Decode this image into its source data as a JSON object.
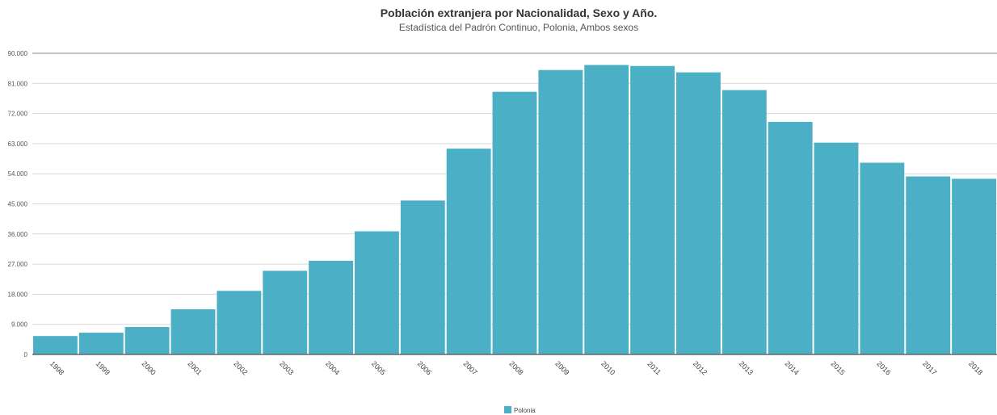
{
  "chart_data": {
    "type": "bar",
    "title": "Población extranjera por Nacionalidad, Sexo y Año.",
    "subtitle": "Estadística del Padrón Continuo, Polonia, Ambos sexos",
    "categories": [
      "1998",
      "1999",
      "2000",
      "2001",
      "2002",
      "2003",
      "2004",
      "2005",
      "2006",
      "2007",
      "2008",
      "2009",
      "2010",
      "2011",
      "2012",
      "2013",
      "2014",
      "2015",
      "2016",
      "2017",
      "2018"
    ],
    "series": [
      {
        "name": "Polonia",
        "values": [
          5500,
          6500,
          8200,
          13500,
          19000,
          25000,
          28000,
          36800,
          46000,
          61500,
          78500,
          85000,
          86500,
          86200,
          84300,
          79000,
          69500,
          63300,
          57300,
          53200,
          52500
        ]
      }
    ],
    "ylim": [
      0,
      90000
    ],
    "yticks": [
      0,
      9000,
      18000,
      27000,
      36000,
      45000,
      54000,
      63000,
      72000,
      81000,
      90000
    ],
    "ytick_labels": [
      "0",
      "9.000",
      "18.000",
      "27.000",
      "36.000",
      "45.000",
      "54.000",
      "63.000",
      "72.000",
      "81.000",
      "90.000"
    ],
    "grid": true,
    "legend": "bottom-center",
    "colors": {
      "bar": "#4bb0c6",
      "grid": "#d9d9d9",
      "axis": "#666666"
    }
  }
}
